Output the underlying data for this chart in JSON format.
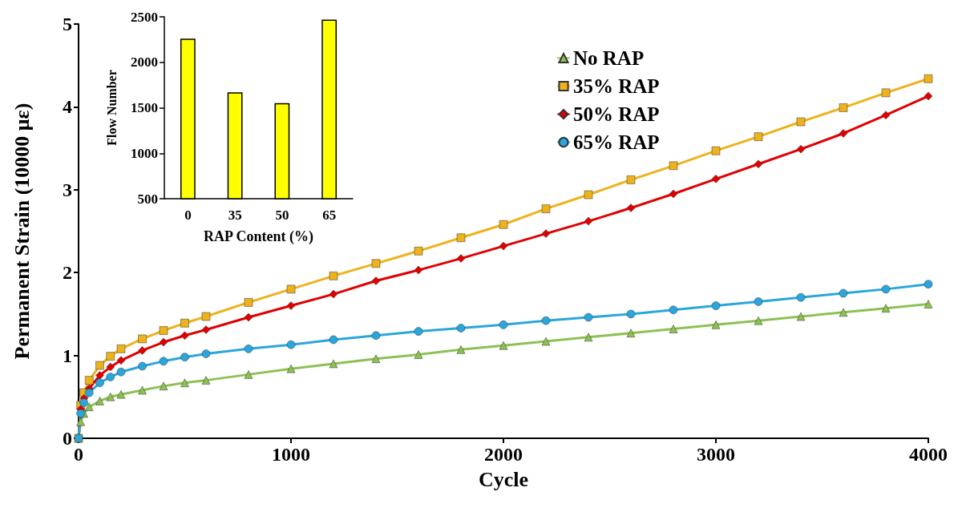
{
  "chart_data": [
    {
      "type": "line",
      "xlabel": "Cycle",
      "ylabel": "Permanent Strain (10000 με)",
      "xlim": [
        0,
        4000
      ],
      "xticks": [
        0,
        1000,
        2000,
        3000,
        4000
      ],
      "ylim": [
        0,
        5
      ],
      "yticks": [
        0,
        1,
        2,
        3,
        4,
        5
      ],
      "grid": false,
      "legend": "top right",
      "x": [
        0,
        10,
        25,
        50,
        100,
        150,
        200,
        300,
        400,
        500,
        600,
        800,
        1000,
        1200,
        1400,
        1600,
        1800,
        2000,
        2200,
        2400,
        2600,
        2800,
        3000,
        3200,
        3400,
        3600,
        3800,
        4000
      ],
      "series": [
        {
          "name": "No RAP",
          "color": "#8dc153",
          "marker": "triangle",
          "values": [
            0,
            0.2,
            0.3,
            0.38,
            0.45,
            0.5,
            0.53,
            0.58,
            0.63,
            0.67,
            0.7,
            0.77,
            0.84,
            0.9,
            0.96,
            1.01,
            1.07,
            1.12,
            1.17,
            1.22,
            1.27,
            1.32,
            1.37,
            1.42,
            1.47,
            1.52,
            1.57,
            1.62
          ]
        },
        {
          "name": "35% RAP",
          "color": "#eeb21c",
          "marker": "square",
          "values": [
            0,
            0.4,
            0.55,
            0.7,
            0.88,
            0.99,
            1.08,
            1.2,
            1.3,
            1.39,
            1.47,
            1.64,
            1.8,
            1.96,
            2.11,
            2.26,
            2.42,
            2.58,
            2.77,
            2.94,
            3.12,
            3.29,
            3.47,
            3.64,
            3.82,
            3.99,
            4.17,
            4.34
          ]
        },
        {
          "name": "50% RAP",
          "color": "#e00000",
          "marker": "diamond",
          "values": [
            0,
            0.35,
            0.48,
            0.6,
            0.76,
            0.86,
            0.94,
            1.06,
            1.16,
            1.24,
            1.31,
            1.46,
            1.6,
            1.74,
            1.9,
            2.03,
            2.17,
            2.32,
            2.47,
            2.62,
            2.78,
            2.95,
            3.13,
            3.31,
            3.49,
            3.68,
            3.9,
            4.13
          ]
        },
        {
          "name": "65% RAP",
          "color": "#2aa6dc",
          "marker": "circle",
          "values": [
            0,
            0.3,
            0.43,
            0.55,
            0.67,
            0.74,
            0.8,
            0.87,
            0.93,
            0.98,
            1.02,
            1.08,
            1.13,
            1.19,
            1.24,
            1.29,
            1.33,
            1.37,
            1.42,
            1.46,
            1.5,
            1.55,
            1.6,
            1.65,
            1.7,
            1.75,
            1.8,
            1.86
          ]
        }
      ]
    },
    {
      "type": "bar",
      "xlabel": "RAP Content (%)",
      "ylabel": "Flow Number",
      "categories": [
        "0",
        "35",
        "50",
        "65"
      ],
      "values": [
        2260,
        1670,
        1550,
        2470
      ],
      "color": "#ffff00",
      "ylim": [
        500,
        2500
      ],
      "yticks": [
        500,
        1000,
        1500,
        2000,
        2500
      ],
      "grid": false,
      "legend": false
    }
  ]
}
